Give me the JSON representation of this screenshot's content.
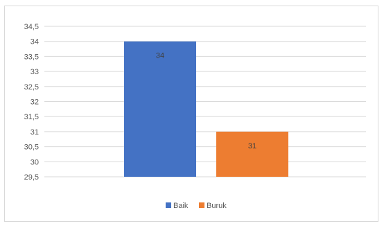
{
  "chart_data": {
    "type": "bar",
    "categories": [
      "Baik",
      "Buruk"
    ],
    "values": [
      34,
      31
    ],
    "data_labels": [
      "34",
      "31"
    ],
    "yticks": [
      "29,5",
      "30",
      "30,5",
      "31",
      "31,5",
      "32",
      "32,5",
      "33",
      "33,5",
      "34",
      "34,5"
    ],
    "ylim": [
      29.5,
      34.5
    ],
    "title": "",
    "xlabel": "",
    "ylabel": "",
    "grid": true,
    "legend_position": "bottom",
    "colors": [
      "#4472C4",
      "#ED7D31"
    ],
    "legend": [
      "Baik",
      "Buruk"
    ]
  }
}
